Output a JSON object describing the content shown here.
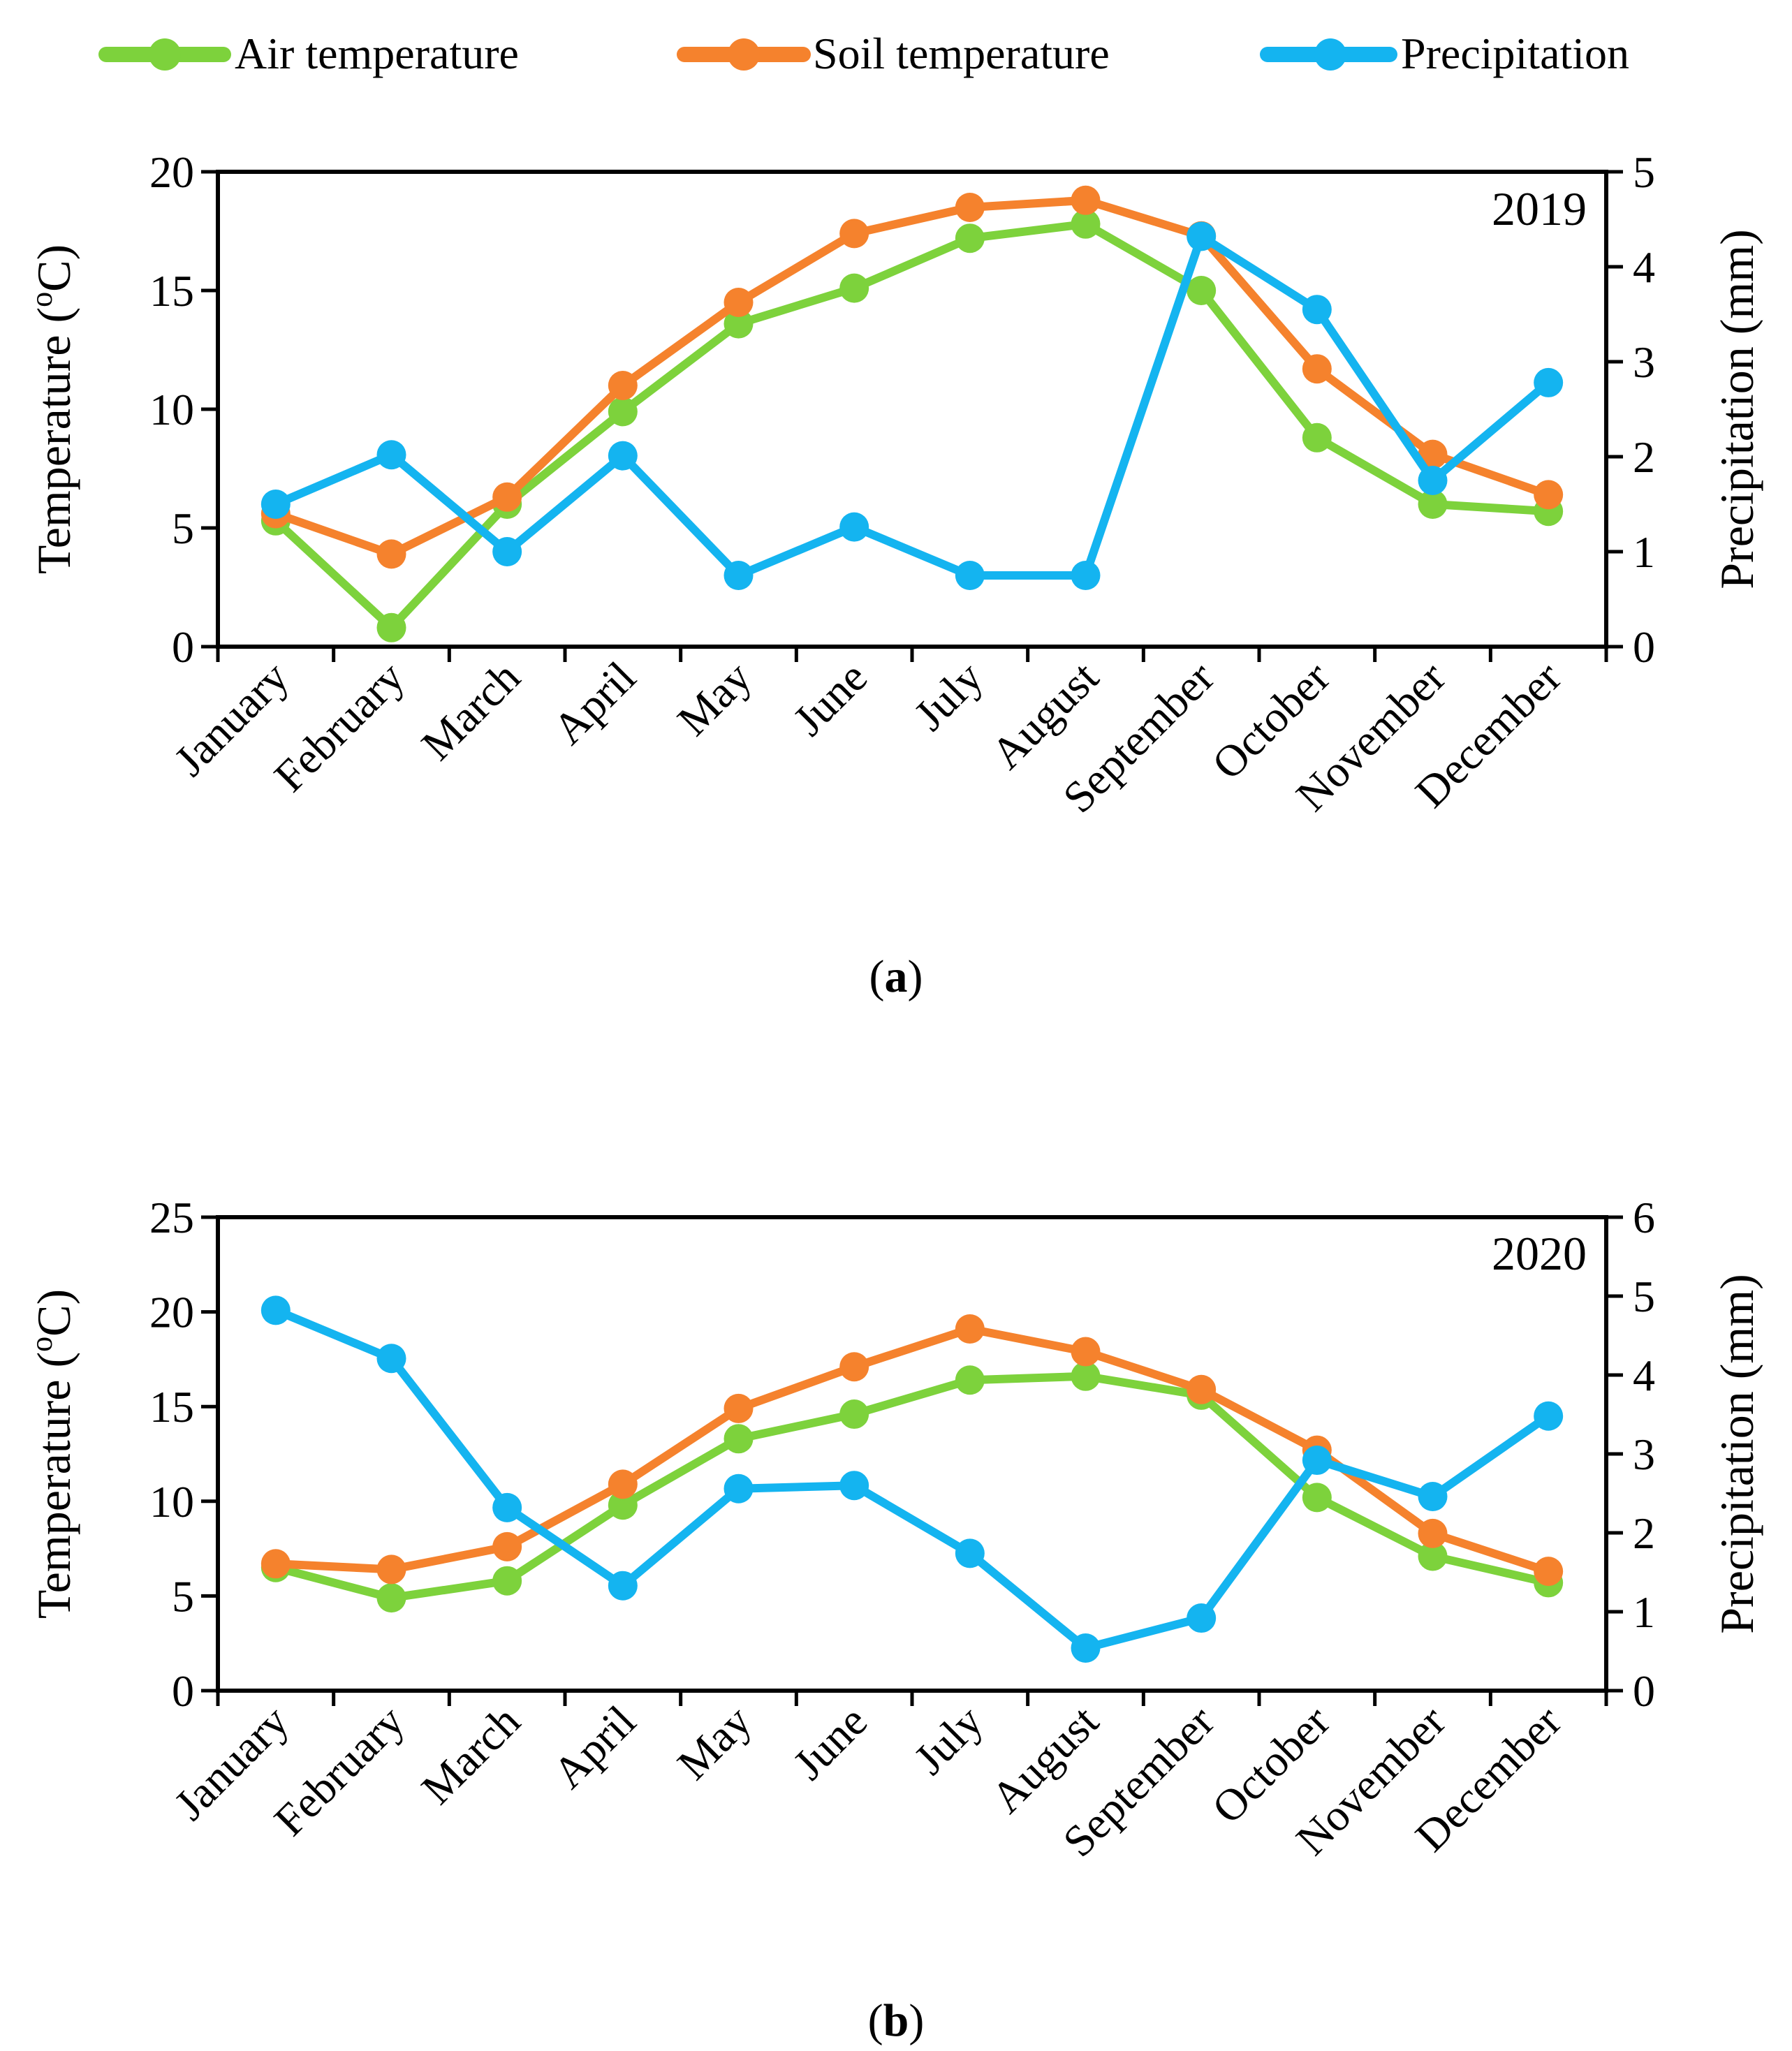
{
  "legend": [
    {
      "name": "Air temperature",
      "color": "#7DD23C"
    },
    {
      "name": "Soil temperature",
      "color": "#F5822D"
    },
    {
      "name": "Precipitation",
      "color": "#14B4F0"
    }
  ],
  "chart_data": [
    {
      "type": "line",
      "annotation": "2019",
      "caption": {
        "open": "(",
        "letter": "a",
        "close": ")"
      },
      "ylabel_left": {
        "text": "Temperature (",
        "sup": "o",
        "after": "C)"
      },
      "ylabel_right": "Precipitation (mm)",
      "categories": [
        "January",
        "February",
        "March",
        "April",
        "May",
        "June",
        "July",
        "August",
        "September",
        "October",
        "November",
        "December"
      ],
      "ylim_left": [
        0,
        20
      ],
      "yticks_left": [
        "0",
        "5",
        "10",
        "15",
        "20"
      ],
      "ylim_right": [
        0,
        5
      ],
      "yticks_right": [
        "0",
        "1",
        "2",
        "3",
        "4",
        "5"
      ],
      "series": [
        {
          "name": "Air temperature",
          "axis": "left",
          "values": [
            5.3,
            0.8,
            6.0,
            9.9,
            13.6,
            15.1,
            17.2,
            17.8,
            15.0,
            8.8,
            6.0,
            5.7
          ]
        },
        {
          "name": "Soil temperature",
          "axis": "left",
          "values": [
            5.6,
            3.9,
            6.3,
            11.0,
            14.5,
            17.4,
            18.5,
            18.8,
            17.3,
            11.7,
            8.1,
            6.4
          ]
        },
        {
          "name": "Precipitation",
          "axis": "right",
          "values": [
            1.5,
            2.02,
            1.0,
            2.01,
            0.75,
            1.26,
            0.75,
            0.75,
            4.32,
            3.55,
            1.75,
            2.78
          ]
        }
      ]
    },
    {
      "type": "line",
      "annotation": "2020",
      "caption": {
        "open": "(",
        "letter": "b",
        "close": ")"
      },
      "ylabel_left": {
        "text": "Temperature (",
        "sup": "o",
        "after": "C)"
      },
      "ylabel_right": "Precipitation (mm)",
      "categories": [
        "January",
        "February",
        "March",
        "April",
        "May",
        "June",
        "July",
        "August",
        "September",
        "October",
        "November",
        "December"
      ],
      "ylim_left": [
        0,
        25
      ],
      "yticks_left": [
        "0",
        "5",
        "10",
        "15",
        "20",
        "25"
      ],
      "ylim_right": [
        0,
        6
      ],
      "yticks_right": [
        "0",
        "1",
        "2",
        "3",
        "4",
        "5",
        "6"
      ],
      "series": [
        {
          "name": "Air temperature",
          "axis": "left",
          "values": [
            6.5,
            4.9,
            5.8,
            9.8,
            13.3,
            14.6,
            16.4,
            16.6,
            15.6,
            10.2,
            7.1,
            5.7
          ]
        },
        {
          "name": "Soil temperature",
          "axis": "left",
          "values": [
            6.7,
            6.4,
            7.6,
            10.9,
            14.9,
            17.1,
            19.1,
            17.9,
            15.9,
            12.7,
            8.3,
            6.3
          ]
        },
        {
          "name": "Precipitation",
          "axis": "right",
          "values": [
            4.82,
            4.21,
            2.32,
            1.33,
            2.56,
            2.6,
            1.74,
            0.54,
            0.92,
            2.92,
            2.46,
            3.48
          ]
        }
      ]
    }
  ]
}
